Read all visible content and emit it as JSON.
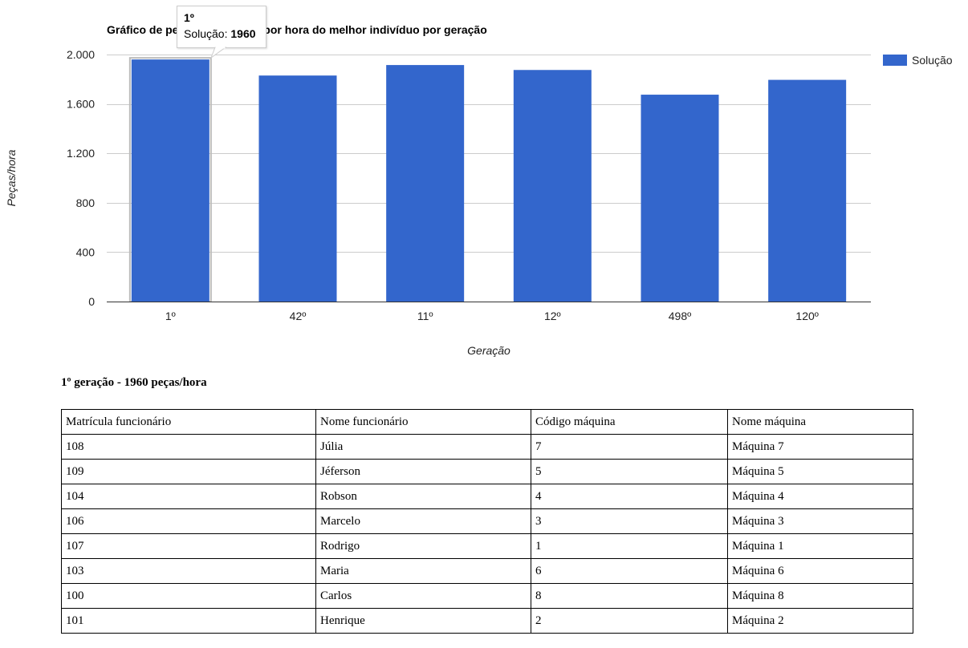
{
  "chart_data": {
    "type": "bar",
    "title": "Gráfico de peças produzidas por hora do melhor indivíduo por geração",
    "xlabel": "Geração",
    "ylabel": "Peças/hora",
    "categories": [
      "1º",
      "42º",
      "11º",
      "12º",
      "498º",
      "120º"
    ],
    "series": [
      {
        "name": "Solução",
        "values": [
          1960,
          1830,
          1915,
          1875,
          1675,
          1795
        ]
      }
    ],
    "ylim": [
      0,
      2000
    ],
    "yticks": [
      0,
      400,
      800,
      1200,
      1600,
      2000
    ],
    "ytick_labels": [
      "0",
      "400",
      "800",
      "1.200",
      "1.600",
      "2.000"
    ],
    "grid": true,
    "legend": "right",
    "bar_color": "#3366cc",
    "highlighted_category": "1º"
  },
  "tooltip": {
    "title": "1º",
    "series_label": "Solução:",
    "value": "1960"
  },
  "summary_heading": "1º geração - 1960 peças/hora",
  "table": {
    "headers": [
      "Matrícula funcionário",
      "Nome funcionário",
      "Código máquina",
      "Nome máquina"
    ],
    "rows": [
      [
        "108",
        "Júlia",
        "7",
        "Máquina 7"
      ],
      [
        "109",
        "Jéferson",
        "5",
        "Máquina 5"
      ],
      [
        "104",
        "Robson",
        "4",
        "Máquina 4"
      ],
      [
        "106",
        "Marcelo",
        "3",
        "Máquina 3"
      ],
      [
        "107",
        "Rodrigo",
        "1",
        "Máquina 1"
      ],
      [
        "103",
        "Maria",
        "6",
        "Máquina 6"
      ],
      [
        "100",
        "Carlos",
        "8",
        "Máquina 8"
      ],
      [
        "101",
        "Henrique",
        "2",
        "Máquina 2"
      ]
    ]
  }
}
